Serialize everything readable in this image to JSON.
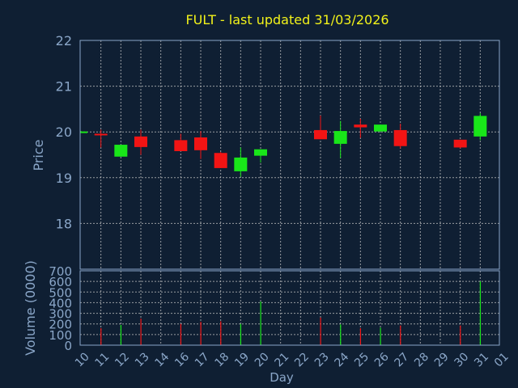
{
  "chart_data": [
    {
      "type": "candlestick",
      "title": "FULT - last updated 31/03/2026",
      "ylabel": "Price",
      "ylim": [
        17.0,
        22.0
      ],
      "yticks": [
        18,
        19,
        20,
        21,
        22
      ],
      "xticks": [
        "10",
        "11",
        "12",
        "13",
        "14",
        "16",
        "17",
        "18",
        "19",
        "20",
        "21",
        "22",
        "23",
        "24",
        "25",
        "26",
        "27",
        "28",
        "29",
        "30",
        "31",
        "01"
      ],
      "colors": {
        "up": "#19e619",
        "down": "#f21414",
        "grid": "#c8c8c8",
        "axis": "#8aa6c8"
      },
      "candles": [
        {
          "x": 0,
          "open": 19.99,
          "high": 20.02,
          "low": 19.98,
          "close": 20.01
        },
        {
          "x": 1,
          "open": 19.96,
          "high": 20.05,
          "low": 19.66,
          "close": 19.94
        },
        {
          "x": 2,
          "open": 19.46,
          "high": 19.72,
          "low": 19.46,
          "close": 19.72
        },
        {
          "x": 3,
          "open": 19.9,
          "high": 20.05,
          "low": 19.5,
          "close": 19.67
        },
        {
          "x": 5,
          "open": 19.82,
          "high": 19.96,
          "low": 19.58,
          "close": 19.58
        },
        {
          "x": 6,
          "open": 19.88,
          "high": 20.02,
          "low": 19.41,
          "close": 19.6
        },
        {
          "x": 7,
          "open": 19.54,
          "high": 19.56,
          "low": 19.21,
          "close": 19.21
        },
        {
          "x": 8,
          "open": 19.14,
          "high": 19.66,
          "low": 19.02,
          "close": 19.44
        },
        {
          "x": 9,
          "open": 19.48,
          "high": 19.62,
          "low": 19.33,
          "close": 19.62
        },
        {
          "x": 12,
          "open": 20.04,
          "high": 20.36,
          "low": 19.84,
          "close": 19.84
        },
        {
          "x": 13,
          "open": 19.74,
          "high": 20.24,
          "low": 19.43,
          "close": 20.02
        },
        {
          "x": 14,
          "open": 20.16,
          "high": 20.29,
          "low": 19.87,
          "close": 20.1
        },
        {
          "x": 15,
          "open": 20.01,
          "high": 20.16,
          "low": 20.01,
          "close": 20.16
        },
        {
          "x": 16,
          "open": 20.04,
          "high": 20.18,
          "low": 19.64,
          "close": 19.69
        },
        {
          "x": 19,
          "open": 19.83,
          "high": 19.83,
          "low": 19.64,
          "close": 19.66
        },
        {
          "x": 20,
          "open": 19.9,
          "high": 20.41,
          "low": 19.82,
          "close": 20.35
        }
      ]
    },
    {
      "type": "bar",
      "ylabel": "Volume (0000)",
      "xlabel": "Day",
      "ylim": [
        0,
        700
      ],
      "yticks": [
        0,
        100,
        200,
        300,
        400,
        500,
        600,
        700
      ],
      "bars": [
        {
          "x": 1,
          "value": 160,
          "color": "#f21414"
        },
        {
          "x": 2,
          "value": 190,
          "color": "#19e619"
        },
        {
          "x": 3,
          "value": 250,
          "color": "#f21414"
        },
        {
          "x": 5,
          "value": 200,
          "color": "#f21414"
        },
        {
          "x": 6,
          "value": 220,
          "color": "#f21414"
        },
        {
          "x": 7,
          "value": 225,
          "color": "#f21414"
        },
        {
          "x": 8,
          "value": 200,
          "color": "#19e619"
        },
        {
          "x": 9,
          "value": 410,
          "color": "#19e619"
        },
        {
          "x": 12,
          "value": 260,
          "color": "#f21414"
        },
        {
          "x": 13,
          "value": 195,
          "color": "#19e619"
        },
        {
          "x": 14,
          "value": 160,
          "color": "#f21414"
        },
        {
          "x": 15,
          "value": 165,
          "color": "#19e619"
        },
        {
          "x": 16,
          "value": 185,
          "color": "#f21414"
        },
        {
          "x": 19,
          "value": 185,
          "color": "#f21414"
        },
        {
          "x": 20,
          "value": 600,
          "color": "#19e619"
        }
      ]
    }
  ]
}
